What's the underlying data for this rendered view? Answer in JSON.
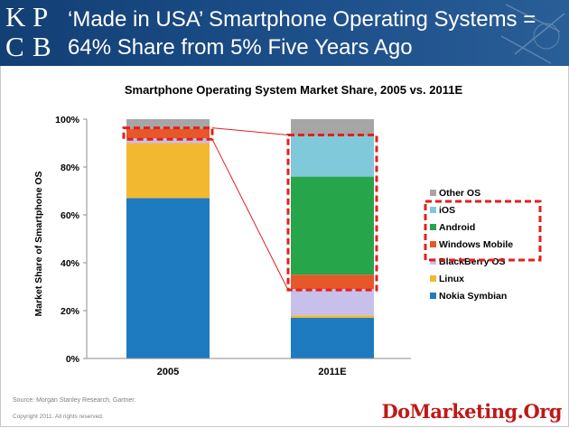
{
  "header": {
    "logo_letters": [
      "K",
      "P",
      "C",
      "B"
    ],
    "title_line1": "‘Made in USA’ Smartphone Operating Systems =",
    "title_line2": "64% Share from 5% Five Years Ago"
  },
  "chart_data": {
    "type": "bar",
    "stacked": true,
    "title": "Smartphone Operating System Market Share, 2005 vs. 2011E",
    "ylabel": "Market Share of Smartphone OS",
    "xlabel": "",
    "ylim": [
      0,
      100
    ],
    "yticks": [
      "0%",
      "20%",
      "40%",
      "60%",
      "80%",
      "100%"
    ],
    "categories": [
      "2005",
      "2011E"
    ],
    "series": [
      {
        "name": "Nokia Symbian",
        "color": "#1f7bbf",
        "values": [
          67,
          17
        ]
      },
      {
        "name": "Linux",
        "color": "#f2b830",
        "values": [
          23,
          1
        ]
      },
      {
        "name": "BlackBerry OS",
        "color": "#c7c0ea",
        "values": [
          2,
          11
        ]
      },
      {
        "name": "Windows Mobile",
        "color": "#e6582a",
        "values": [
          4,
          6
        ]
      },
      {
        "name": "Android",
        "color": "#27a54a",
        "values": [
          0,
          41
        ]
      },
      {
        "name": "iOS",
        "color": "#7fc9da",
        "values": [
          0,
          17
        ]
      },
      {
        "name": "Other OS",
        "color": "#a6a6a6",
        "values": [
          4,
          7
        ]
      }
    ],
    "legend_labels": [
      "Other OS",
      "iOS",
      "Android",
      "Windows Mobile",
      "BlackBerry OS",
      "Linux",
      "Nokia Symbian"
    ],
    "legend_position": "right",
    "grid": false,
    "annotations": {
      "highlight_color": "#e02020",
      "note": "dashed boxes highlight US-made OS share (iOS, Android, Windows Mobile)"
    }
  },
  "footer": {
    "source": "Source: Morgan Stanley Research, Gartner.",
    "copyright": "Copyright 2011. All rights reserved.",
    "watermark": "DoMarketing.Org"
  }
}
